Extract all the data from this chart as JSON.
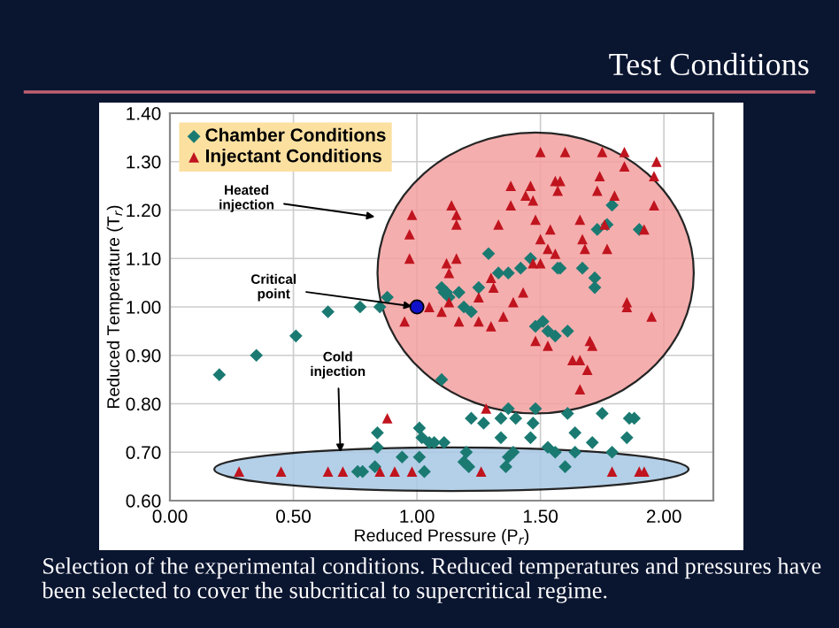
{
  "chart_data": {
    "type": "scatter",
    "title": "Test Conditions",
    "xlabel": "Reduced Pressure (P$_{r}$)",
    "ylabel": "Reduced Temperature (T$_{r}$)",
    "xlim": [
      0,
      2.2
    ],
    "ylim": [
      0.6,
      1.4
    ],
    "xticks": [
      {
        "value": 0,
        "label": "0.00"
      },
      {
        "value": 0.5,
        "label": "0.50"
      },
      {
        "value": 1,
        "label": "1.00"
      },
      {
        "value": 1.5,
        "label": "1.50"
      },
      {
        "value": 2,
        "label": "2.00"
      }
    ],
    "yticks": [
      {
        "value": 0.6,
        "label": "0.60"
      },
      {
        "value": 0.7,
        "label": "0.70"
      },
      {
        "value": 0.8,
        "label": "0.80"
      },
      {
        "value": 0.9,
        "label": "0.90"
      },
      {
        "value": 1.0,
        "label": "1.00"
      },
      {
        "value": 1.1,
        "label": "1.10"
      },
      {
        "value": 1.2,
        "label": "1.20"
      },
      {
        "value": 1.3,
        "label": "1.30"
      },
      {
        "value": 1.4,
        "label": "1.40"
      }
    ],
    "grid": true,
    "legend": "top left",
    "series": [
      {
        "name": "Chamber Conditions",
        "color": "#1a7a72",
        "marker": "diamond",
        "x": [
          0.2,
          0.35,
          0.51,
          0.64,
          0.77,
          0.85,
          0.84,
          0.84,
          0.83,
          0.78,
          0.76,
          0.94,
          1.01,
          1.02,
          1.05,
          1.07,
          1.01,
          1.03,
          1.11,
          1.19,
          1.2,
          1.21,
          1.22,
          1.27,
          1.34,
          1.4,
          1.47,
          1.46,
          1.34,
          1.37,
          1.36,
          1.39,
          1.53,
          1.56,
          1.61,
          1.64,
          1.6,
          1.64,
          1.75,
          1.71,
          1.85,
          1.79,
          1.86,
          1.88,
          0.88,
          1.1,
          1.11,
          1.12,
          1.13,
          1.17,
          1.19,
          1.22,
          1.25,
          1.29,
          1.33,
          1.37,
          1.42,
          1.46,
          1.57,
          1.58,
          1.67,
          1.72,
          1.72,
          1.73,
          1.77,
          1.79,
          1.9,
          1.48,
          1.51,
          1.53,
          1.56,
          1.61,
          1.1,
          1.37,
          1.48
        ],
        "values": [
          0.86,
          0.9,
          0.94,
          0.99,
          1.0,
          1.0,
          0.74,
          0.71,
          0.67,
          0.66,
          0.66,
          0.69,
          0.75,
          0.73,
          0.72,
          0.72,
          0.69,
          0.66,
          0.72,
          0.68,
          0.7,
          0.67,
          0.77,
          0.76,
          0.77,
          0.77,
          0.76,
          0.73,
          0.73,
          0.69,
          0.67,
          0.7,
          0.71,
          0.7,
          0.78,
          0.74,
          0.67,
          0.7,
          0.78,
          0.72,
          0.73,
          0.7,
          0.77,
          0.77,
          1.02,
          1.04,
          1.03,
          1.03,
          1.02,
          1.03,
          1.0,
          0.99,
          1.04,
          1.11,
          1.07,
          1.07,
          1.08,
          1.1,
          1.08,
          1.08,
          1.08,
          1.04,
          1.06,
          1.16,
          1.17,
          1.21,
          1.16,
          0.96,
          0.97,
          0.95,
          0.94,
          0.95,
          0.85,
          0.79,
          0.79
        ]
      },
      {
        "name": "Injectant Conditions",
        "color": "#c0141e",
        "marker": "triangle",
        "x": [
          0.98,
          0.97,
          0.97,
          0.95,
          0.88,
          0.28,
          0.45,
          0.64,
          0.7,
          0.85,
          0.91,
          0.98,
          1.05,
          1.1,
          1.12,
          1.14,
          1.16,
          1.16,
          1.16,
          1.13,
          1.17,
          1.25,
          1.3,
          1.25,
          1.3,
          1.31,
          1.33,
          1.38,
          1.38,
          1.46,
          1.47,
          1.44,
          1.5,
          1.6,
          1.56,
          1.58,
          1.57,
          1.48,
          1.5,
          1.53,
          1.56,
          1.54,
          1.5,
          1.39,
          1.43,
          1.48,
          1.53,
          1.35,
          1.66,
          1.67,
          1.68,
          1.7,
          1.71,
          1.63,
          1.66,
          1.69,
          1.66,
          1.28,
          1.47,
          1.75,
          1.76,
          1.77,
          1.84,
          1.84,
          1.85,
          1.85,
          1.95,
          1.96,
          1.96,
          1.97,
          1.92,
          1.74,
          1.8,
          1.73,
          1.79,
          1.9,
          1.92,
          1.26,
          1.13
        ],
        "values": [
          1.19,
          1.15,
          1.1,
          0.97,
          0.77,
          0.66,
          0.66,
          0.66,
          0.66,
          0.66,
          0.66,
          0.66,
          1.0,
          0.99,
          1.09,
          1.21,
          1.19,
          1.17,
          1.1,
          1.01,
          0.97,
          0.97,
          0.96,
          1.02,
          1.06,
          1.04,
          1.17,
          1.21,
          1.25,
          1.25,
          1.22,
          1.23,
          1.32,
          1.32,
          1.26,
          1.26,
          1.24,
          1.18,
          1.14,
          1.12,
          1.11,
          1.16,
          1.09,
          1.01,
          1.03,
          0.93,
          0.92,
          0.98,
          1.18,
          1.14,
          1.12,
          0.93,
          0.92,
          0.89,
          0.89,
          0.87,
          0.83,
          0.79,
          1.09,
          1.32,
          1.17,
          1.12,
          1.29,
          1.32,
          1.01,
          1.0,
          0.98,
          1.21,
          1.27,
          1.3,
          1.16,
          1.27,
          1.23,
          1.24,
          0.66,
          0.66,
          0.66,
          0.66,
          1.07
        ]
      },
      {
        "color": "#1010c8",
        "marker": "circle",
        "x": [
          1.0
        ],
        "values": [
          1.0
        ]
      }
    ],
    "annotations": [
      "Heated\ninjection",
      {
        "text": "Critical\npoint",
        "x": 1.0,
        "y": 1.0
      },
      "Cold\ninjection",
      "Selection of the experimental conditions. Reduced temperatures and pressures have been selected to cover the subcritical to supercritical regime."
    ]
  }
}
